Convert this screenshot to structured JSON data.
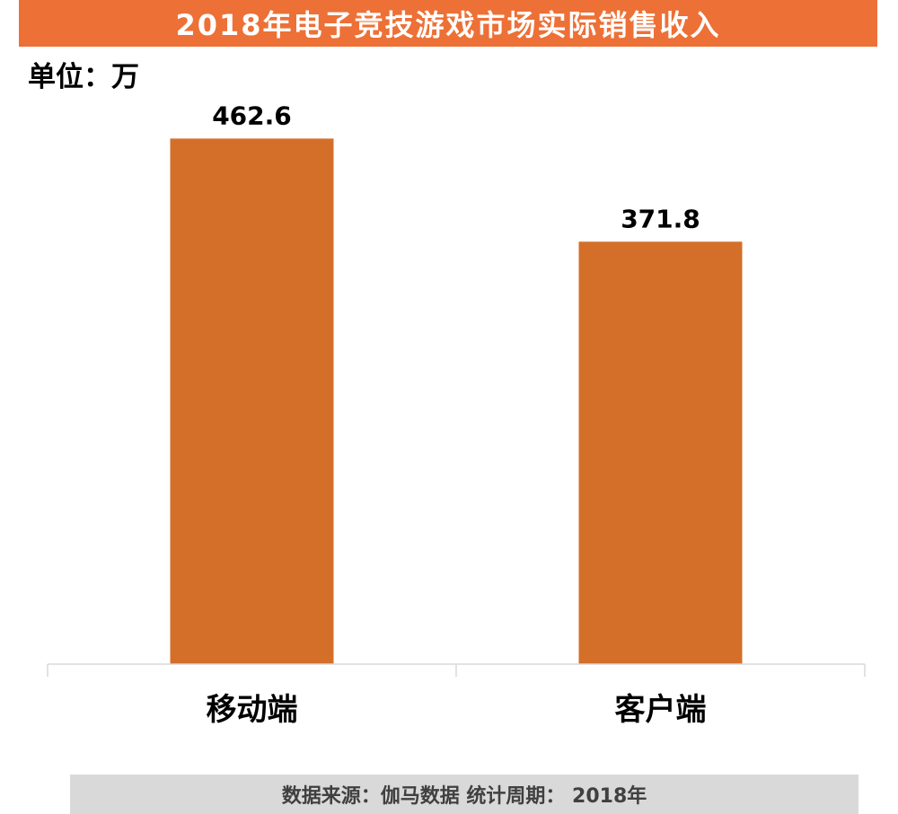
{
  "title": "2018年电子竞技游戏市场实际销售收入",
  "unit_label": "单位：万",
  "footer": "数据来源：伽马数据  统计周期：  2018年",
  "colors": {
    "title_bg": "#ED7036",
    "bar": "#D46F29",
    "footer_bg": "#D9D9D9",
    "axis": "#D9D9D9"
  },
  "chart_data": {
    "type": "bar",
    "categories": [
      "移动端",
      "客户端"
    ],
    "values": [
      462.6,
      371.8
    ],
    "data_labels": [
      "462.6",
      "371.8"
    ],
    "title": "2018年电子竞技游戏市场实际销售收入",
    "xlabel": "",
    "ylabel": "",
    "unit": "万",
    "grid": false,
    "legend": "none"
  }
}
